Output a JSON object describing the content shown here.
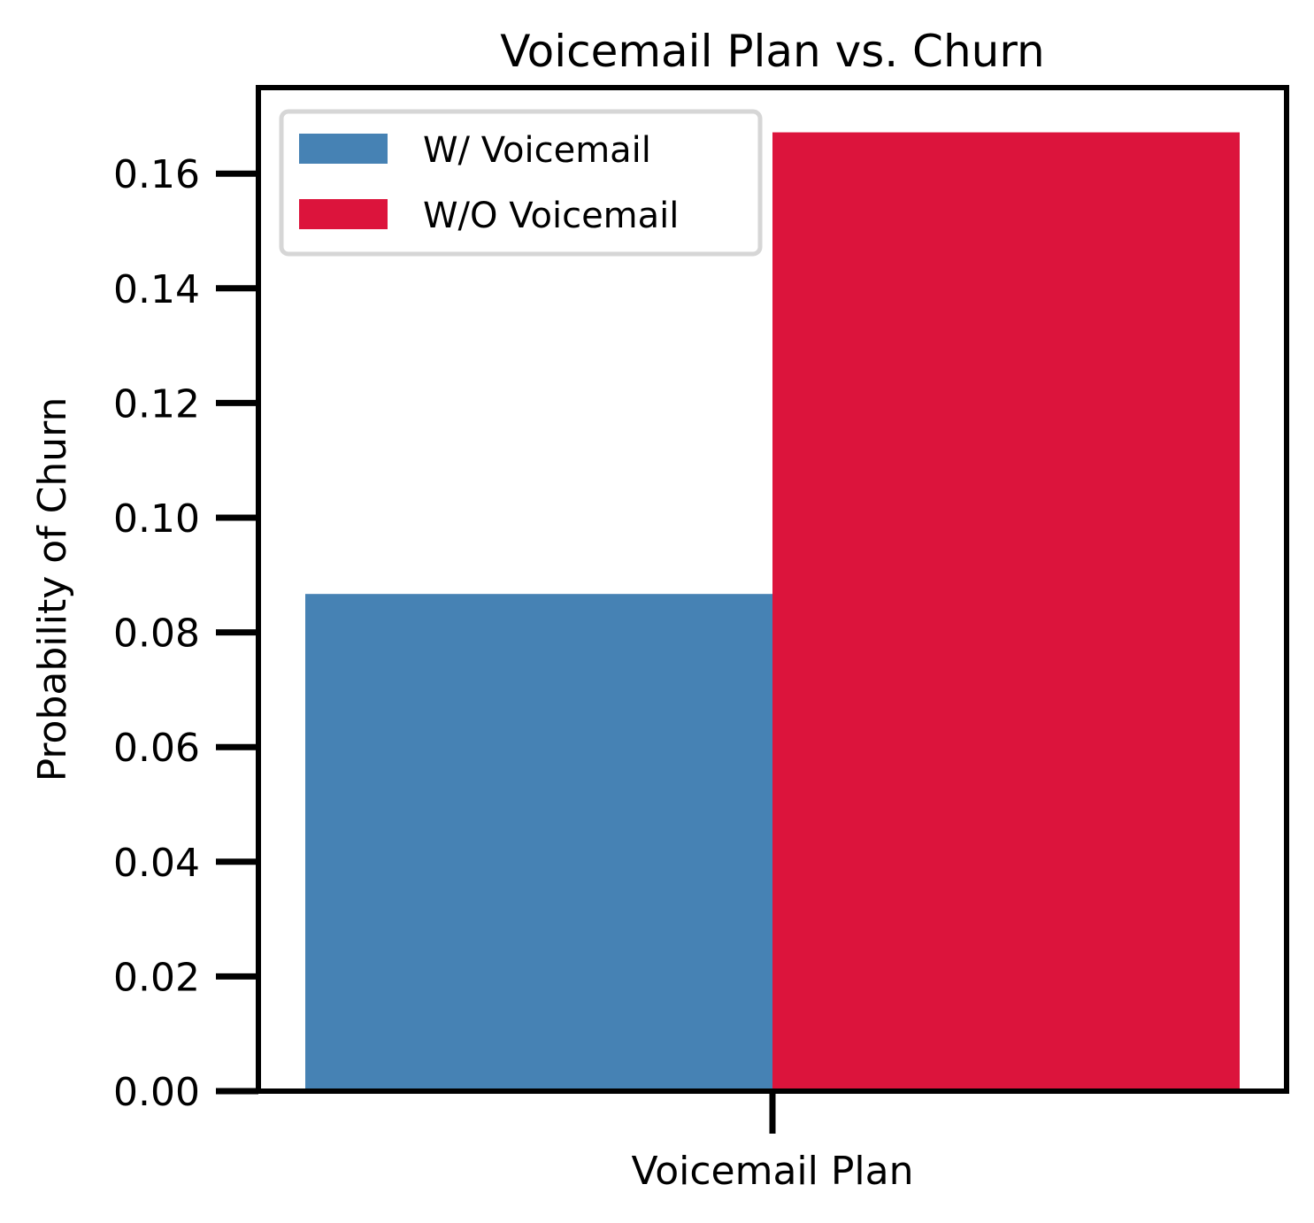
{
  "chart_data": {
    "type": "bar",
    "title": "Voicemail Plan vs. Churn",
    "xlabel": "Voicemail Plan",
    "ylabel": "Probability of Churn",
    "categories": [
      "Voicemail Plan"
    ],
    "series": [
      {
        "name": "W/ Voicemail",
        "values": [
          0.0867
        ],
        "color": "#4682b4"
      },
      {
        "name": "W/O Voicemail",
        "values": [
          0.1672
        ],
        "color": "#dc143c"
      }
    ],
    "ylim": [
      0,
      0.175
    ],
    "yticks": [
      0.0,
      0.02,
      0.04,
      0.06,
      0.08,
      0.1,
      0.12,
      0.14,
      0.16
    ],
    "ytick_labels": [
      "0.00",
      "0.02",
      "0.04",
      "0.06",
      "0.08",
      "0.10",
      "0.12",
      "0.14",
      "0.16"
    ],
    "grid": false,
    "legend": "top-left"
  }
}
